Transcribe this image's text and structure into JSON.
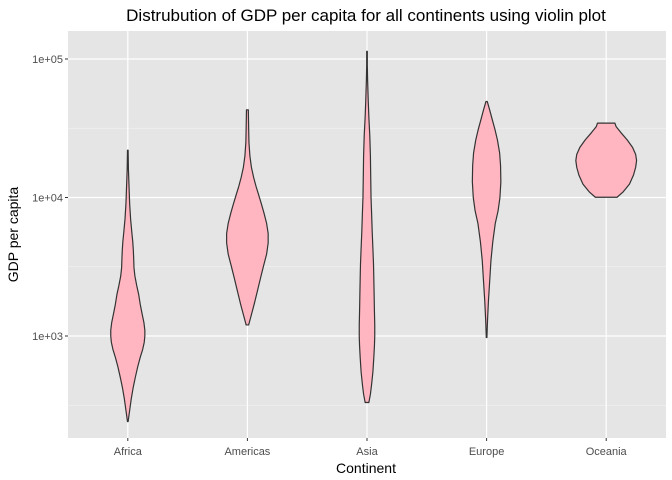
{
  "chart_data": {
    "type": "violin",
    "title": "Distrubution of GDP per capita for all continents using violin plot",
    "xlabel": "Continent",
    "ylabel": "GDP per capita",
    "y_scale": "log10",
    "ylim": [
      200,
      150000
    ],
    "y_ticks": [
      {
        "value": 1000,
        "label": "1e+03"
      },
      {
        "value": 10000,
        "label": "1e+04"
      },
      {
        "value": 100000,
        "label": "1e+05"
      }
    ],
    "grid": true,
    "legend": "none",
    "fill_color": "#ffb6c1",
    "outline_color": "#333333",
    "panel_background": "#e5e5e5",
    "categories": [
      "Africa",
      "Americas",
      "Asia",
      "Europe",
      "Oceania"
    ],
    "violins": [
      {
        "category": "Africa",
        "min": 241,
        "max": 21951,
        "profile": [
          [
            241,
            0.01
          ],
          [
            290,
            0.06
          ],
          [
            350,
            0.11
          ],
          [
            420,
            0.17
          ],
          [
            500,
            0.24
          ],
          [
            600,
            0.32
          ],
          [
            700,
            0.4
          ],
          [
            800,
            0.48
          ],
          [
            900,
            0.53
          ],
          [
            1000,
            0.55
          ],
          [
            1100,
            0.55
          ],
          [
            1250,
            0.52
          ],
          [
            1450,
            0.46
          ],
          [
            1700,
            0.4
          ],
          [
            2000,
            0.35
          ],
          [
            2300,
            0.29
          ],
          [
            2700,
            0.23
          ],
          [
            3100,
            0.2
          ],
          [
            3600,
            0.19
          ],
          [
            4100,
            0.18
          ],
          [
            4800,
            0.16
          ],
          [
            5600,
            0.13
          ],
          [
            7000,
            0.09
          ],
          [
            9000,
            0.06
          ],
          [
            12000,
            0.04
          ],
          [
            16000,
            0.02
          ],
          [
            21951,
            0.01
          ]
        ]
      },
      {
        "category": "Americas",
        "min": 1202,
        "max": 42952,
        "profile": [
          [
            1202,
            0.04
          ],
          [
            1400,
            0.12
          ],
          [
            1700,
            0.22
          ],
          [
            2100,
            0.32
          ],
          [
            2600,
            0.42
          ],
          [
            3200,
            0.52
          ],
          [
            3900,
            0.62
          ],
          [
            4700,
            0.67
          ],
          [
            5500,
            0.67
          ],
          [
            6500,
            0.62
          ],
          [
            7800,
            0.53
          ],
          [
            9000,
            0.45
          ],
          [
            10500,
            0.36
          ],
          [
            12000,
            0.28
          ],
          [
            14000,
            0.2
          ],
          [
            16500,
            0.13
          ],
          [
            20000,
            0.08
          ],
          [
            25000,
            0.05
          ],
          [
            32000,
            0.04
          ],
          [
            42952,
            0.03
          ]
        ]
      },
      {
        "category": "Asia",
        "min": 331,
        "max": 113523,
        "profile": [
          [
            331,
            0.06
          ],
          [
            380,
            0.11
          ],
          [
            450,
            0.15
          ],
          [
            550,
            0.19
          ],
          [
            700,
            0.22
          ],
          [
            850,
            0.24
          ],
          [
            1000,
            0.25
          ],
          [
            1200,
            0.25
          ],
          [
            1500,
            0.24
          ],
          [
            2000,
            0.23
          ],
          [
            2600,
            0.22
          ],
          [
            3300,
            0.21
          ],
          [
            4300,
            0.19
          ],
          [
            5500,
            0.17
          ],
          [
            7500,
            0.15
          ],
          [
            10000,
            0.13
          ],
          [
            14000,
            0.12
          ],
          [
            20000,
            0.11
          ],
          [
            28000,
            0.09
          ],
          [
            38000,
            0.06
          ],
          [
            50000,
            0.04
          ],
          [
            70000,
            0.02
          ],
          [
            90000,
            0.01
          ],
          [
            113523,
            0.01
          ]
        ]
      },
      {
        "category": "Europe",
        "min": 974,
        "max": 49357,
        "profile": [
          [
            974,
            0.01
          ],
          [
            1300,
            0.03
          ],
          [
            1800,
            0.06
          ],
          [
            2500,
            0.1
          ],
          [
            3500,
            0.14
          ],
          [
            4800,
            0.2
          ],
          [
            6500,
            0.28
          ],
          [
            8000,
            0.37
          ],
          [
            10000,
            0.43
          ],
          [
            13000,
            0.46
          ],
          [
            17000,
            0.45
          ],
          [
            21000,
            0.42
          ],
          [
            26000,
            0.35
          ],
          [
            31000,
            0.27
          ],
          [
            36000,
            0.19
          ],
          [
            42000,
            0.11
          ],
          [
            46000,
            0.06
          ],
          [
            49357,
            0.02
          ]
        ]
      },
      {
        "category": "Oceania",
        "min": 10040,
        "max": 34435,
        "profile": [
          [
            10040,
            0.35
          ],
          [
            11000,
            0.55
          ],
          [
            12500,
            0.75
          ],
          [
            14500,
            0.88
          ],
          [
            16500,
            0.95
          ],
          [
            18500,
            0.98
          ],
          [
            20500,
            0.95
          ],
          [
            23000,
            0.85
          ],
          [
            26000,
            0.68
          ],
          [
            29500,
            0.47
          ],
          [
            32500,
            0.32
          ],
          [
            34435,
            0.28
          ]
        ]
      }
    ]
  }
}
